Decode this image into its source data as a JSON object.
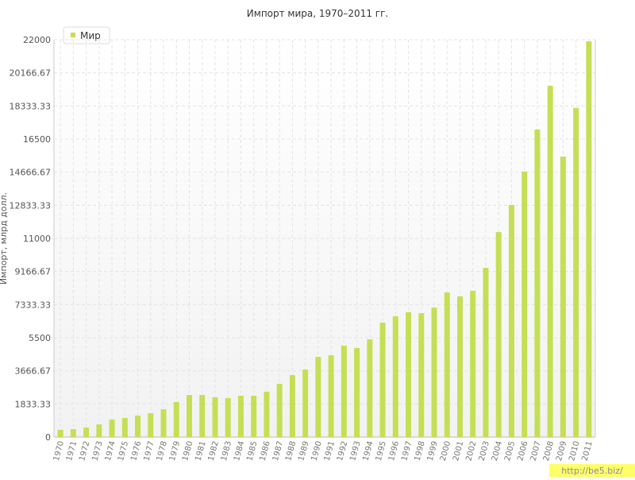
{
  "chart_data": {
    "type": "bar",
    "title": "Импорт мира, 1970–2011 гг.",
    "y_label": "Импорт, млрд долл.",
    "categories": [
      "1970",
      "1971",
      "1972",
      "1973",
      "1974",
      "1975",
      "1976",
      "1977",
      "1978",
      "1979",
      "1980",
      "1981",
      "1982",
      "1983",
      "1984",
      "1985",
      "1986",
      "1987",
      "1988",
      "1989",
      "1990",
      "1991",
      "1992",
      "1993",
      "1994",
      "1995",
      "1996",
      "1997",
      "1998",
      "1999",
      "2000",
      "2001",
      "2002",
      "2003",
      "2004",
      "2005",
      "2006",
      "2007",
      "2008",
      "2009",
      "2010",
      "2011"
    ],
    "series": [
      {
        "name": "Мир",
        "color": "#c5df55",
        "values": [
          400,
          440,
          530,
          700,
          970,
          1060,
          1190,
          1320,
          1540,
          1940,
          2330,
          2330,
          2200,
          2160,
          2290,
          2290,
          2510,
          2950,
          3430,
          3740,
          4440,
          4530,
          5060,
          4930,
          5410,
          6340,
          6690,
          6910,
          6860,
          7170,
          8010,
          7790,
          8100,
          9370,
          11350,
          12850,
          14700,
          17030,
          19450,
          15530,
          18220,
          21910
        ]
      }
    ],
    "ylim": [
      0,
      22000
    ],
    "yticks": [
      0,
      1833.33,
      3666.67,
      5500,
      7333.33,
      9166.67,
      11000,
      12833.33,
      14666.67,
      16500,
      18333.33,
      20166.67,
      22000
    ],
    "grid": true,
    "legend": "top-left",
    "watermark": "http://be5.biz/"
  }
}
